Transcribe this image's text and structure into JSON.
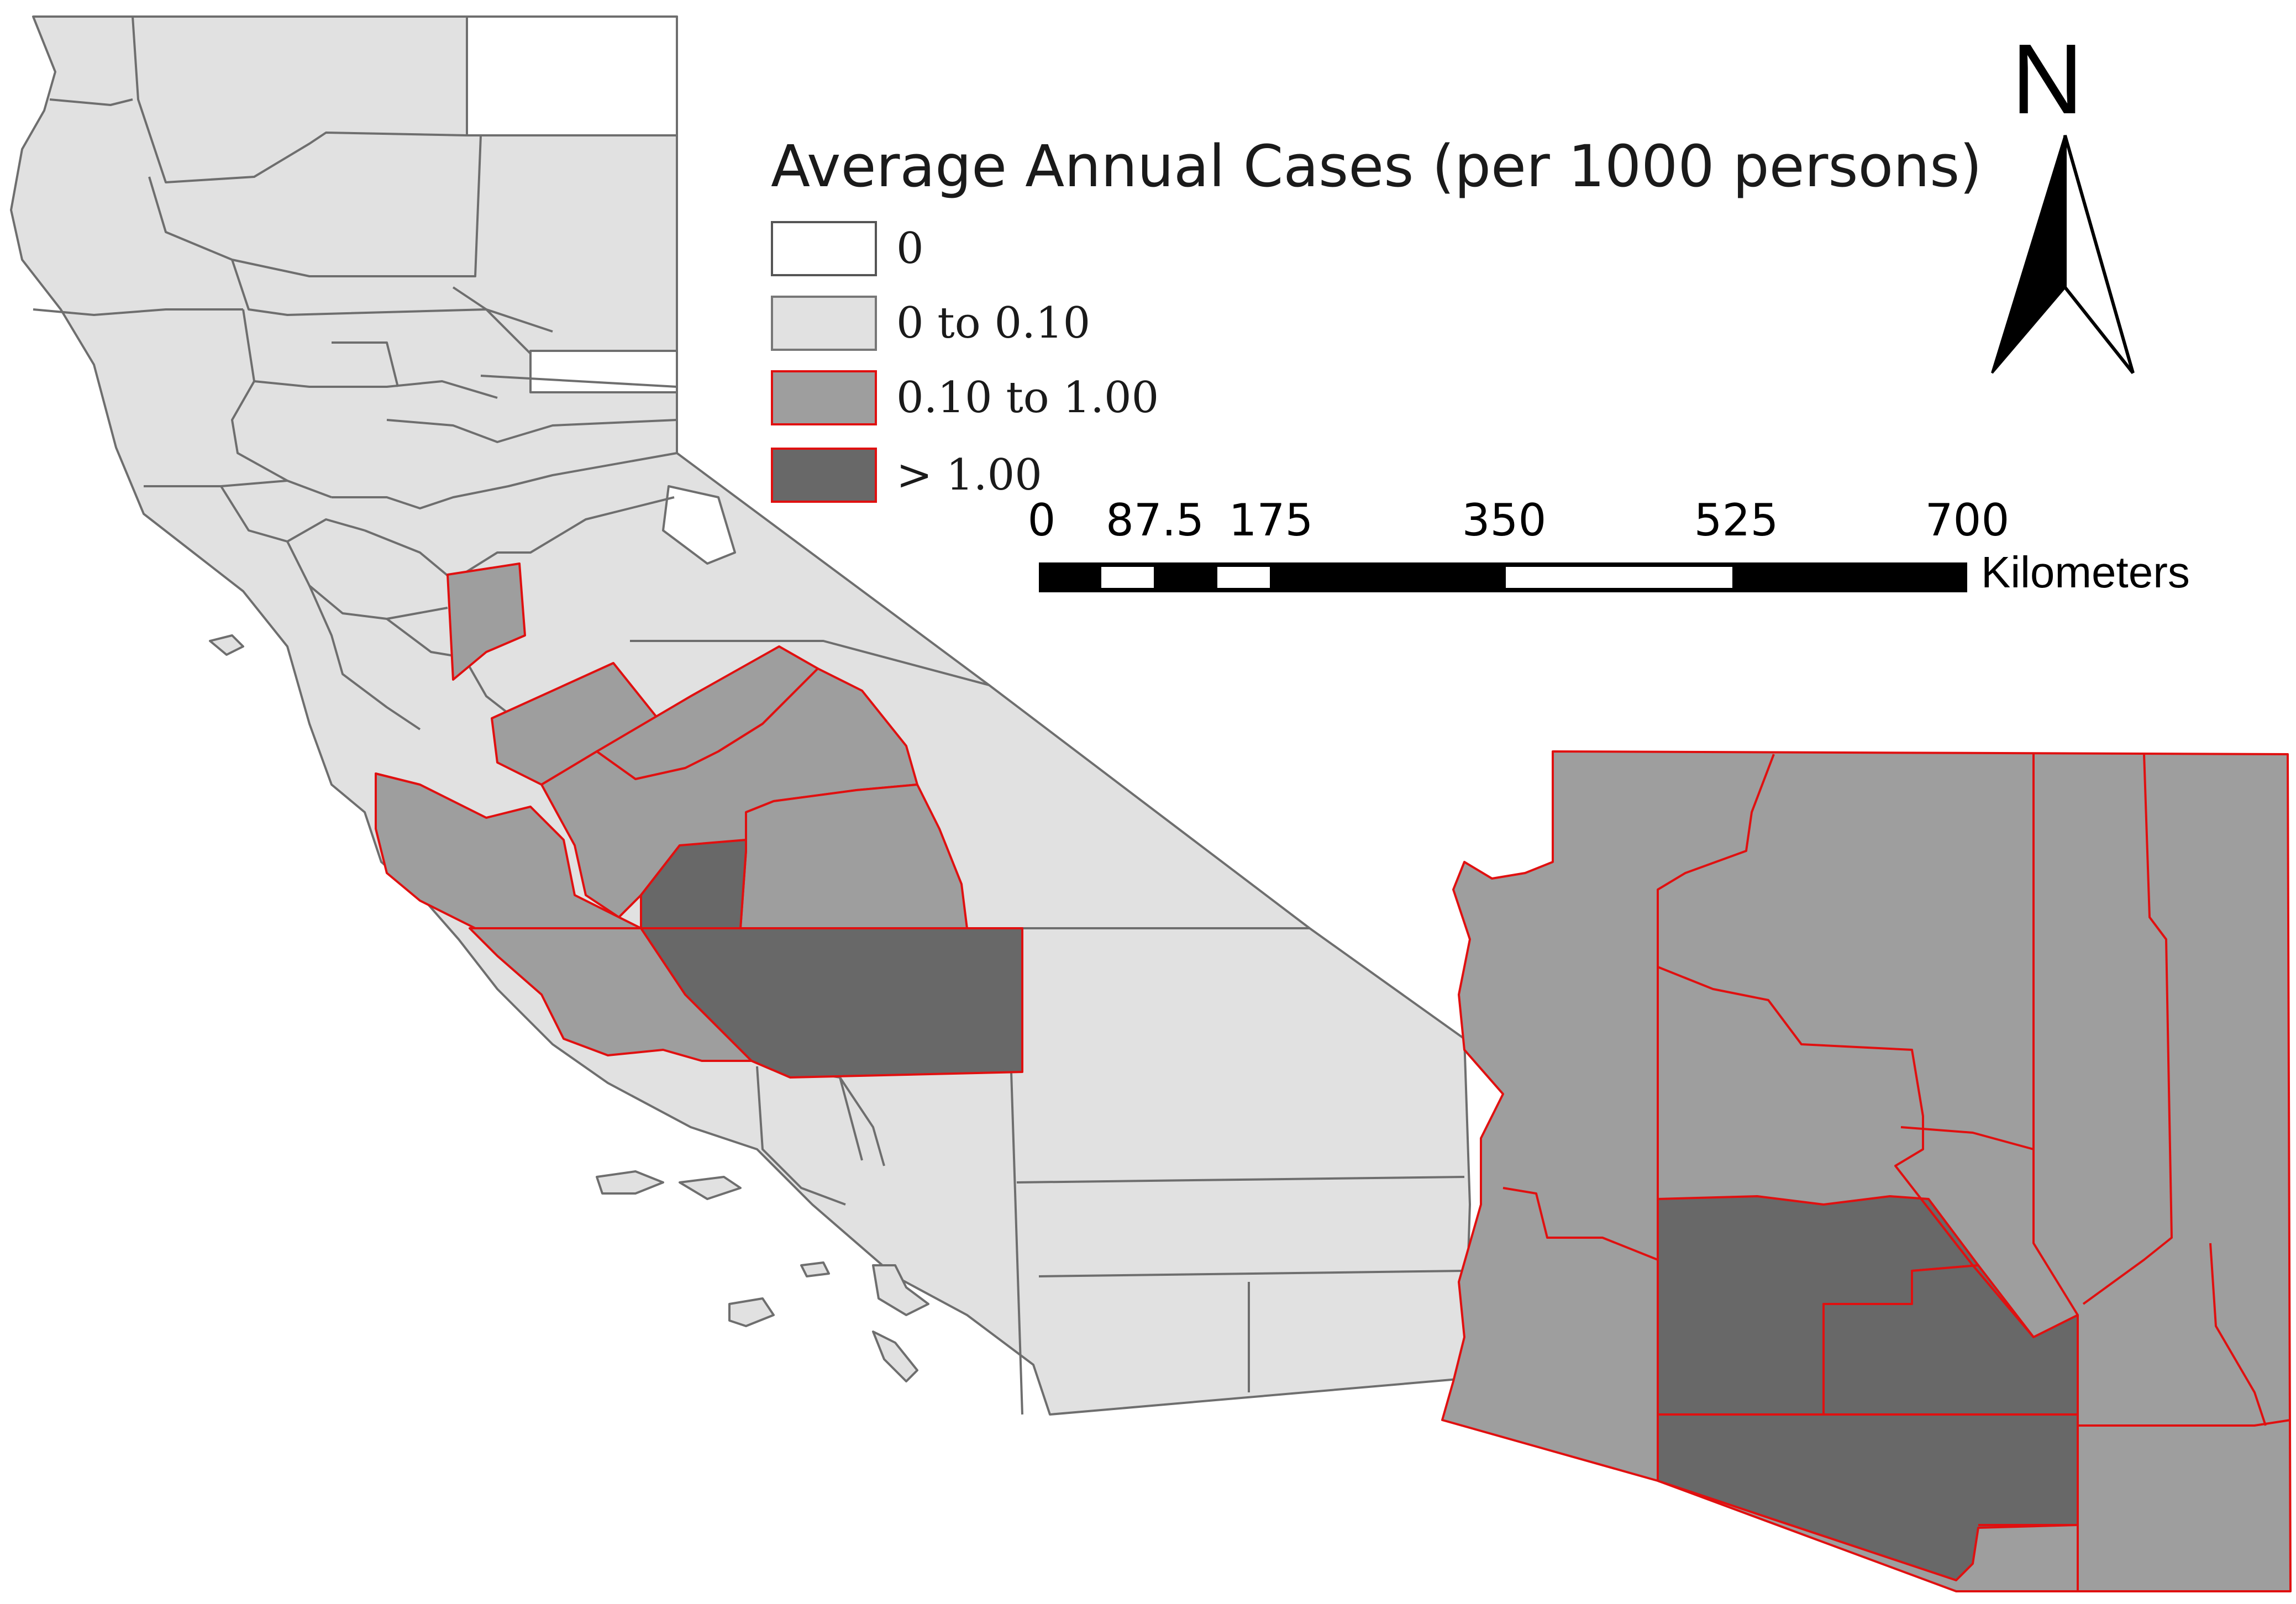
{
  "legend": {
    "title": "Average Annual Cases (per 1000 persons)",
    "classes": [
      {
        "label": "0",
        "fill": "#ffffff",
        "stroke": "#555555"
      },
      {
        "label": "0 to 0.10",
        "fill": "#e1e1e1",
        "stroke": "#777777"
      },
      {
        "label": "0.10 to 1.00",
        "fill": "#9e9e9e",
        "stroke": "#e01010"
      },
      {
        "label": "> 1.00",
        "fill": "#686868",
        "stroke": "#e01010"
      }
    ]
  },
  "scale_bar": {
    "ticks": [
      "0",
      "87.5",
      "175",
      "350",
      "525",
      "700"
    ],
    "unit": "Kilometers"
  },
  "north_arrow": {
    "letter": "N"
  },
  "colors": {
    "county_border_gray": "#6e6e6e",
    "county_border_red": "#e01010"
  }
}
